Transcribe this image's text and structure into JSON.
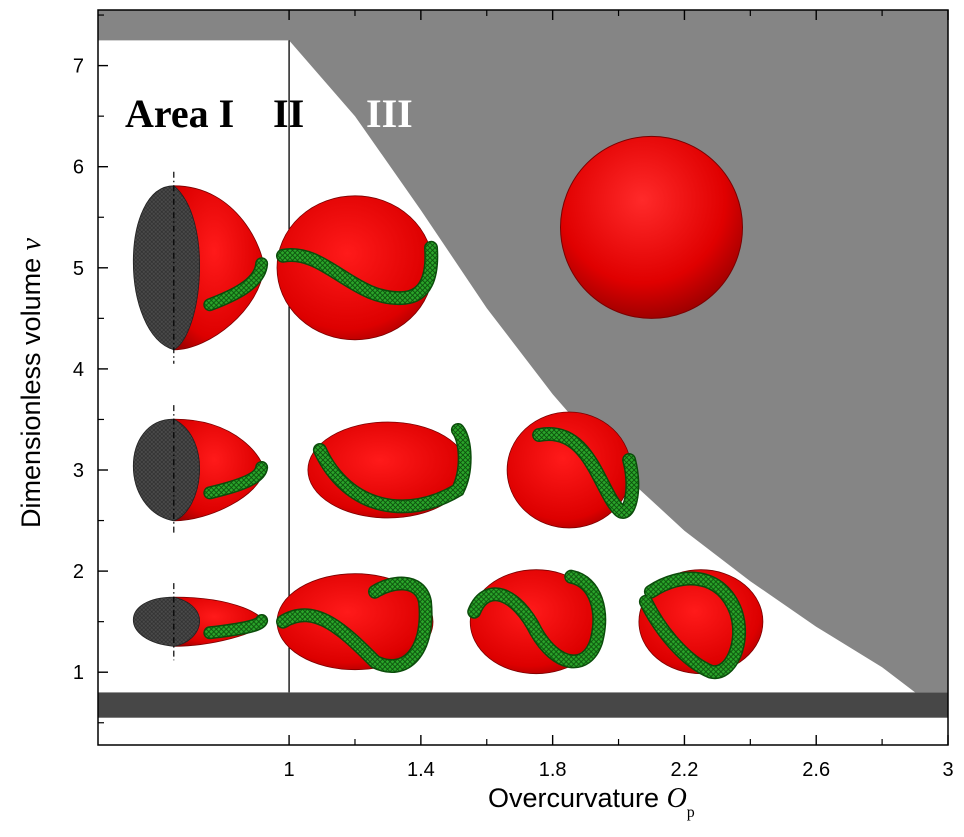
{
  "chart_data": {
    "type": "phase-diagram",
    "title": "",
    "xlabel": "Overcurvature",
    "xlabel_symbol": "O",
    "xlabel_subscript": "p",
    "ylabel": "Dimensionless volume",
    "ylabel_symbol": "v",
    "xlim": [
      0.42,
      3.0
    ],
    "ylim": [
      0.28,
      7.55
    ],
    "x_ticks": [
      1,
      1.4,
      1.8,
      2.2,
      2.6,
      3
    ],
    "x_tick_labels": [
      "1",
      "1.4",
      "1.8",
      "2.2",
      "2.6",
      "3"
    ],
    "y_ticks": [
      1,
      2,
      3,
      4,
      5,
      6,
      7
    ],
    "y_tick_labels": [
      "1",
      "2",
      "3",
      "4",
      "5",
      "6",
      "7"
    ],
    "grid": false,
    "regions": [
      {
        "label": "Area I",
        "x_range": [
          0.42,
          1.0
        ],
        "color": "#ffffff",
        "label_color": "#000000"
      },
      {
        "label": "II",
        "x_range": [
          1.0,
          2.9
        ],
        "color": "#ffffff",
        "label_color": "#000000"
      },
      {
        "label": "III",
        "color": "#858585",
        "label_color": "#ffffff"
      }
    ],
    "boundary_line_x": 1.0,
    "boundary_curve": [
      [
        1.0,
        7.25
      ],
      [
        1.2,
        6.5
      ],
      [
        1.4,
        5.57
      ],
      [
        1.6,
        4.6
      ],
      [
        1.8,
        3.75
      ],
      [
        2.0,
        3.0
      ],
      [
        2.2,
        2.4
      ],
      [
        2.4,
        1.9
      ],
      [
        2.6,
        1.45
      ],
      [
        2.8,
        1.05
      ],
      [
        2.9,
        0.8
      ]
    ],
    "excluded_band": {
      "y_range": [
        0.55,
        0.8
      ],
      "color": "#474747"
    },
    "shapes": [
      {
        "x": 0.65,
        "v": 5,
        "region": "Area I",
        "type": "ring-open-vesicle"
      },
      {
        "x": 0.65,
        "v": 3,
        "region": "Area I",
        "type": "ring-open-vesicle"
      },
      {
        "x": 0.65,
        "v": 1.5,
        "region": "Area I",
        "type": "ring-open-vesicle"
      },
      {
        "x": 1.2,
        "v": 5,
        "region": "II",
        "type": "banded-vesicle"
      },
      {
        "x": 1.3,
        "v": 3,
        "region": "II",
        "type": "banded-vesicle"
      },
      {
        "x": 1.2,
        "v": 1.5,
        "region": "II",
        "type": "banded-vesicle"
      },
      {
        "x": 1.85,
        "v": 3,
        "region": "II",
        "type": "banded-vesicle"
      },
      {
        "x": 1.75,
        "v": 1.5,
        "region": "II",
        "type": "banded-vesicle"
      },
      {
        "x": 2.25,
        "v": 1.5,
        "region": "II",
        "type": "banded-vesicle"
      },
      {
        "x": 2.1,
        "v": 5.4,
        "region": "III",
        "type": "sphere"
      }
    ],
    "colors": {
      "membrane": "#e00000",
      "ring": "#2aa52a",
      "ring_dark": "#0b4d0b",
      "region_III": "#858585",
      "excluded_band": "#474747",
      "cutaway": "#4a4a4a"
    }
  }
}
